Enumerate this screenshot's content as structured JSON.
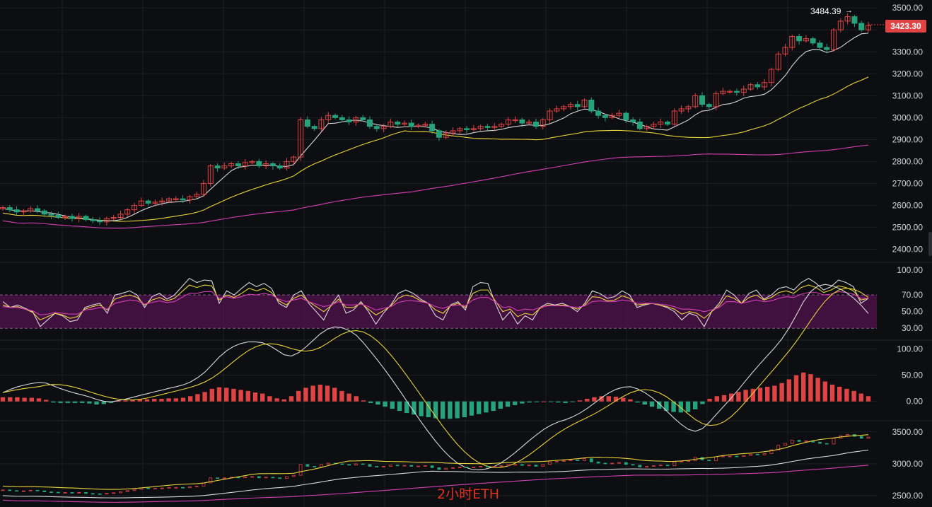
{
  "caption": "2小时ETH",
  "last_price": "3423.30",
  "high_label": "3484.39",
  "high_arrow": "→",
  "colors": {
    "up": "#e04343",
    "down": "#26a37a",
    "ma_fast": "#d8d8d8",
    "ma_mid": "#e8d33a",
    "ma_slow": "#d43fb4",
    "rsi_band": "#4a1248",
    "grid": "#1c1e23",
    "background": "#0d0e11"
  },
  "chart_data": [
    {
      "type": "candlestick",
      "panel": "price",
      "ylim": [
        2350,
        3520
      ],
      "ticks": [
        "3500.00",
        "3400.00",
        "3300.00",
        "3200.00",
        "3100.00",
        "3000.00",
        "2900.00",
        "2800.00",
        "2700.00",
        "2600.00",
        "2500.00",
        "2400.00"
      ],
      "close": [
        2590,
        2580,
        2570,
        2575,
        2585,
        2575,
        2560,
        2555,
        2545,
        2550,
        2540,
        2550,
        2535,
        2530,
        2525,
        2540,
        2545,
        2560,
        2580,
        2600,
        2620,
        2610,
        2615,
        2620,
        2630,
        2630,
        2625,
        2640,
        2650,
        2700,
        2780,
        2770,
        2780,
        2790,
        2780,
        2795,
        2800,
        2780,
        2790,
        2780,
        2770,
        2800,
        2820,
        2990,
        2960,
        2950,
        2990,
        3010,
        3000,
        2990,
        2980,
        3000,
        2990,
        2960,
        2950,
        2960,
        2980,
        2970,
        2975,
        2960,
        2965,
        2970,
        2940,
        2910,
        2930,
        2940,
        2950,
        2945,
        2950,
        2960,
        2955,
        2960,
        2970,
        2990,
        2990,
        2975,
        2980,
        2960,
        2990,
        3030,
        3040,
        3050,
        3060,
        3050,
        3080,
        3030,
        3010,
        3000,
        3010,
        3020,
        2990,
        2980,
        2950,
        2960,
        2970,
        2980,
        2970,
        3030,
        3040,
        3050,
        3100,
        3060,
        3050,
        3110,
        3120,
        3120,
        3115,
        3130,
        3150,
        3140,
        3160,
        3220,
        3290,
        3320,
        3370,
        3350,
        3360,
        3340,
        3320,
        3310,
        3400,
        3440,
        3460,
        3430,
        3400,
        3420
      ],
      "open_offset": [
        6,
        -10,
        -10,
        5,
        10,
        -10,
        -15,
        -5,
        -10,
        5,
        -10,
        10,
        -15,
        -5,
        -5,
        15,
        5,
        15,
        20,
        20,
        20,
        -10,
        5,
        5,
        10,
        0,
        -5,
        15,
        10,
        50,
        80,
        -10,
        10,
        10,
        -10,
        15,
        5,
        -20,
        10,
        -10,
        -10,
        30,
        20,
        170,
        -30,
        -10,
        40,
        20,
        -10,
        -10,
        -10,
        20,
        -10,
        -30,
        -10,
        10,
        20,
        -10,
        5,
        -15,
        5,
        5,
        -30,
        -30,
        20,
        10,
        10,
        -5,
        5,
        10,
        -5,
        5,
        10,
        20,
        0,
        -15,
        5,
        -20,
        30,
        40,
        10,
        10,
        10,
        -10,
        30,
        -50,
        -20,
        -10,
        10,
        10,
        -30,
        -10,
        -30,
        10,
        10,
        10,
        -10,
        60,
        10,
        10,
        50,
        -40,
        -10,
        60,
        10,
        0,
        -5,
        15,
        20,
        -10,
        20,
        60,
        70,
        30,
        50,
        -20,
        10,
        -20,
        -20,
        -10,
        90,
        40,
        20,
        -30,
        -30,
        20
      ],
      "ma_fast_last": 3390,
      "ma_mid_last": 3210,
      "ma_slow_last": 2935
    },
    {
      "type": "line",
      "panel": "rsi",
      "ylim": [
        20,
        105
      ],
      "ticks": [
        "100.00",
        "70.00",
        "50.00",
        "30.00"
      ],
      "band": [
        30,
        70
      ],
      "series": [
        {
          "values": [
            62,
            55,
            58,
            54,
            50,
            32,
            40,
            48,
            45,
            38,
            40,
            55,
            58,
            60,
            48,
            70,
            72,
            75,
            70,
            55,
            68,
            72,
            65,
            70,
            80,
            90,
            85,
            88,
            87,
            60,
            75,
            70,
            78,
            85,
            80,
            84,
            78,
            60,
            55,
            70,
            75,
            60,
            50,
            40,
            58,
            70,
            48,
            52,
            62,
            50,
            35,
            48,
            58,
            72,
            76,
            72,
            65,
            60,
            45,
            40,
            58,
            62,
            52,
            80,
            85,
            84,
            60,
            40,
            50,
            35,
            45,
            40,
            55,
            60,
            58,
            60,
            56,
            50,
            60,
            75,
            72,
            66,
            68,
            75,
            70,
            55,
            58,
            60,
            58,
            55,
            50,
            40,
            48,
            45,
            32,
            50,
            60,
            76,
            70,
            60,
            72,
            76,
            65,
            70,
            78,
            80,
            76,
            85,
            90,
            84,
            76,
            80,
            88,
            85,
            80,
            60,
            66
          ]
        },
        {
          "values": [
            58,
            55,
            56,
            53,
            49,
            40,
            44,
            48,
            46,
            42,
            44,
            53,
            56,
            58,
            52,
            65,
            68,
            70,
            67,
            58,
            64,
            67,
            63,
            66,
            74,
            82,
            79,
            82,
            81,
            64,
            70,
            67,
            72,
            78,
            75,
            78,
            73,
            63,
            58,
            66,
            70,
            62,
            56,
            50,
            57,
            65,
            55,
            55,
            60,
            53,
            46,
            51,
            57,
            66,
            70,
            68,
            63,
            60,
            52,
            48,
            57,
            60,
            55,
            72,
            76,
            76,
            63,
            50,
            53,
            44,
            48,
            46,
            54,
            58,
            57,
            58,
            56,
            53,
            58,
            68,
            67,
            63,
            64,
            69,
            66,
            58,
            59,
            60,
            58,
            56,
            53,
            47,
            50,
            48,
            42,
            50,
            57,
            69,
            66,
            60,
            67,
            70,
            64,
            67,
            73,
            75,
            72,
            79,
            82,
            79,
            73,
            76,
            81,
            79,
            75,
            64,
            66
          ]
        },
        {
          "values": [
            56,
            55,
            55,
            53,
            51,
            46,
            47,
            49,
            48,
            47,
            47,
            52,
            53,
            55,
            53,
            60,
            62,
            64,
            63,
            59,
            61,
            63,
            61,
            62,
            67,
            72,
            72,
            74,
            74,
            66,
            68,
            66,
            68,
            71,
            70,
            72,
            70,
            65,
            62,
            64,
            66,
            62,
            59,
            56,
            58,
            62,
            58,
            58,
            59,
            56,
            52,
            54,
            56,
            61,
            63,
            63,
            62,
            60,
            56,
            54,
            57,
            58,
            57,
            64,
            67,
            67,
            62,
            55,
            56,
            51,
            53,
            52,
            55,
            57,
            57,
            57,
            56,
            55,
            57,
            62,
            63,
            62,
            62,
            64,
            63,
            60,
            60,
            60,
            59,
            58,
            56,
            53,
            53,
            52,
            50,
            52,
            55,
            62,
            62,
            60,
            62,
            64,
            62,
            63,
            66,
            68,
            67,
            71,
            73,
            73,
            70,
            71,
            74,
            73,
            71,
            66,
            66
          ]
        }
      ]
    },
    {
      "type": "bar",
      "panel": "macd",
      "ylim": [
        -30,
        110
      ],
      "ticks": [
        "100.00",
        "50.00",
        "0.00"
      ],
      "histogram": [
        8,
        8,
        8,
        7,
        7,
        6,
        3,
        -2,
        -3,
        -3,
        -3,
        -3,
        -4,
        -6,
        -5,
        -3,
        1,
        2,
        3,
        4,
        4,
        5,
        5,
        6,
        6,
        7,
        10,
        14,
        18,
        24,
        27,
        26,
        24,
        22,
        20,
        17,
        15,
        10,
        6,
        4,
        10,
        20,
        26,
        30,
        32,
        30,
        26,
        20,
        15,
        10,
        2,
        -3,
        -6,
        -10,
        -14,
        -18,
        -22,
        -25,
        -28,
        -30,
        -32,
        -33,
        -33,
        -32,
        -30,
        -27,
        -24,
        -21,
        -18,
        -14,
        -10,
        -7,
        -4,
        -2,
        -1,
        0,
        -1,
        -2,
        -3,
        -1,
        2,
        5,
        8,
        10,
        10,
        9,
        7,
        4,
        -2,
        -6,
        -10,
        -14,
        -18,
        -20,
        -21,
        -20,
        -15,
        -5,
        5,
        10,
        12,
        15,
        18,
        22,
        24,
        26,
        28,
        30,
        35,
        42,
        50,
        55,
        52,
        45,
        38,
        32,
        28,
        24,
        20,
        15,
        10
      ]
    },
    {
      "type": "line",
      "panel": "overview",
      "ylim": [
        2400,
        3620
      ],
      "ticks": [
        "3500.00",
        "3000.00",
        "2500.00"
      ]
    }
  ]
}
